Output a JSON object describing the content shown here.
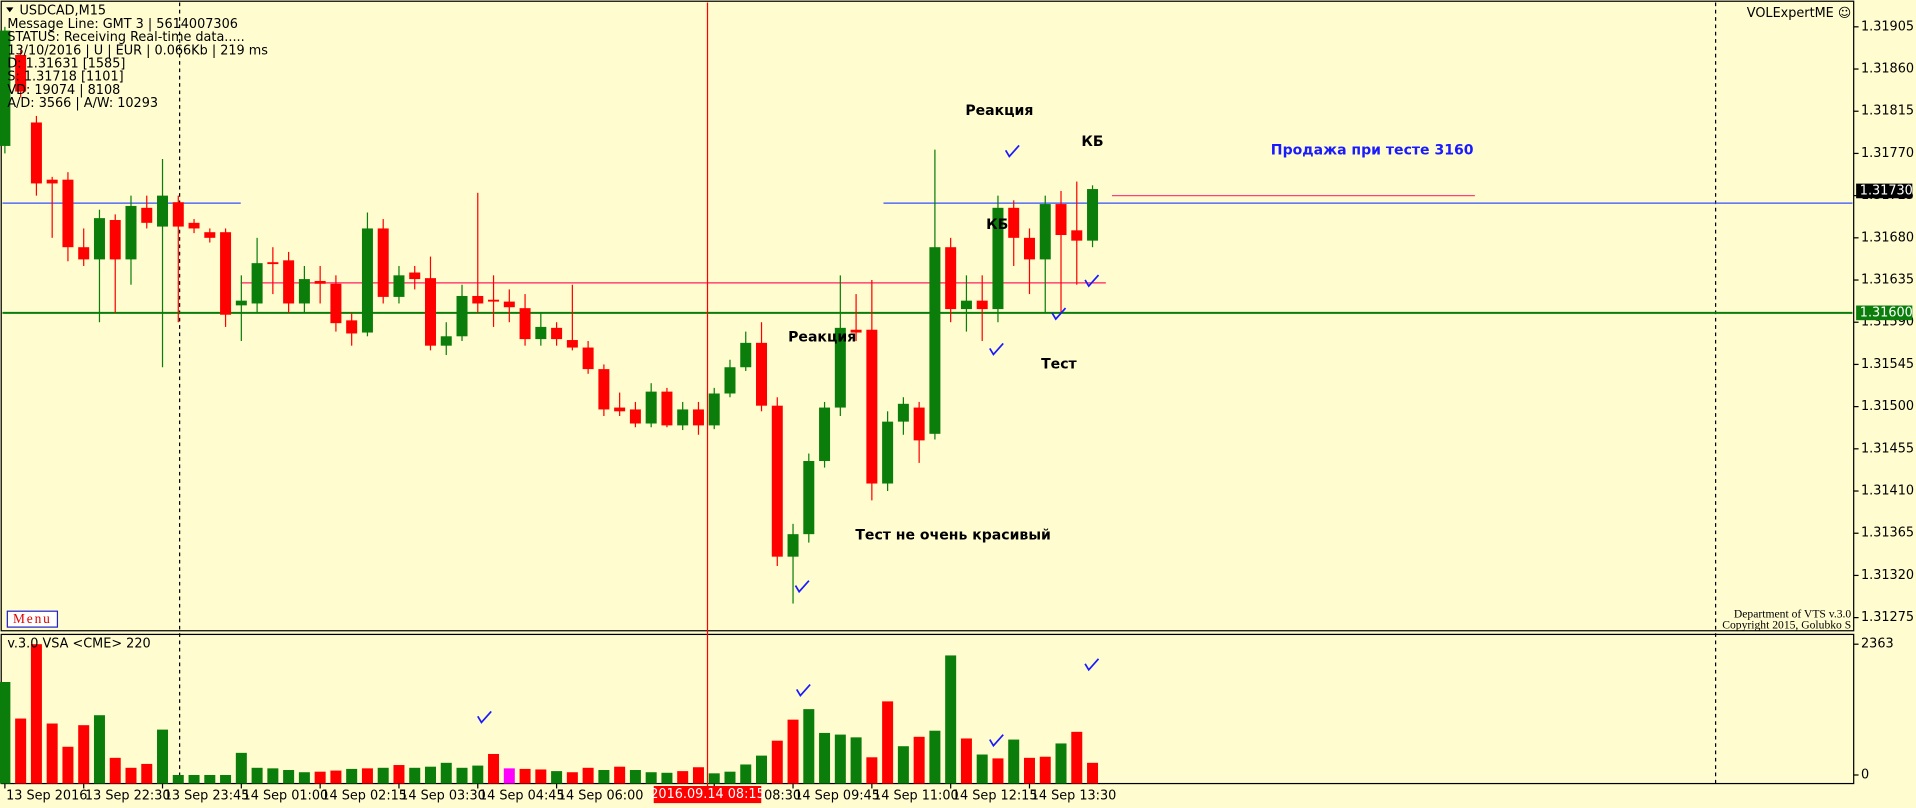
{
  "chart_data": [
    {
      "type": "candlestick",
      "title": "USDCAD,M15",
      "info_lines": [
        "Message Line: GMT 3 | 5614007306",
        "STATUS:  Receiving Real-time data.....",
        "13/10/2016 | U | EUR | 0.066Kb | 219 ms",
        "D: 1.31631  [1585]",
        "S: 1.31718  [1101]",
        "VD: 19074 | 8108",
        "A/D: 3566 | A/W: 10293"
      ],
      "indicator_name": "VOLExpertME ☺",
      "menu_label": "Menu",
      "footer_lines": [
        "Department of VTS  v.3.0",
        "Copyright 2015, Golubko S"
      ],
      "crosshair_label": "2016.09.14 08:15",
      "annotations": [
        "Реакция",
        "КБ",
        "Продажа при тесте 3160",
        "КБ",
        "Реакция",
        "Тест",
        "Тест не очень красивый"
      ],
      "categories": [
        "13 Sep 2016",
        null,
        null,
        null,
        null,
        "13 Sep 22:30",
        null,
        null,
        null,
        null,
        "13 Sep 23:45",
        null,
        null,
        null,
        null,
        "14 Sep 01:00",
        null,
        null,
        null,
        null,
        "14 Sep 02:15",
        null,
        null,
        null,
        null,
        "14 Sep 03:30",
        null,
        null,
        null,
        null,
        "14 Sep 04:45",
        null,
        null,
        null,
        null,
        "14 Sep 06:00",
        null,
        null,
        null,
        null,
        null,
        null,
        null,
        null,
        null,
        "14 Sep 08:30",
        null,
        null,
        null,
        null,
        "14 Sep 09:45",
        null,
        null,
        null,
        null,
        "14 Sep 11:00",
        null,
        null,
        null,
        null,
        "14 Sep 12:15",
        null,
        null,
        null,
        null,
        "14 Sep 13:30",
        null,
        null,
        null,
        null
      ],
      "open": [
        1.31778,
        1.31875,
        1.31803,
        1.31742,
        1.31742,
        1.3167,
        1.31657,
        1.31699,
        1.31657,
        1.31712,
        1.31692,
        1.31718,
        1.31696,
        1.31686,
        1.31686,
        1.31608,
        1.3161,
        1.31654,
        1.31656,
        1.3161,
        1.31634,
        1.31631,
        1.31592,
        1.31579,
        1.3169,
        1.31617,
        1.31643,
        1.31637,
        1.31565,
        1.31575,
        1.31618,
        1.31614,
        1.31612,
        1.31605,
        1.31572,
        1.31584,
        1.31571,
        1.31563,
        1.3154,
        1.31499,
        1.31497,
        1.31482,
        1.31516,
        1.3148,
        1.31497,
        1.3148,
        1.31514,
        1.31542,
        1.31568,
        1.31501,
        1.3134,
        1.31364,
        1.31442,
        1.31499,
        1.31582,
        1.31582,
        1.31418,
        1.31484,
        1.31499,
        1.31471,
        1.3167,
        1.31604,
        1.31613,
        1.31604,
        1.31712,
        1.3168,
        1.31657,
        1.31716,
        1.31688,
        1.31677
      ],
      "high": [
        1.31905,
        1.3188,
        1.3181,
        1.31745,
        1.3175,
        1.3169,
        1.3171,
        1.31705,
        1.31725,
        1.31725,
        1.31764,
        1.31725,
        1.317,
        1.3169,
        1.3169,
        1.3164,
        1.3168,
        1.3167,
        1.31665,
        1.3165,
        1.3165,
        1.3164,
        1.316,
        1.31707,
        1.317,
        1.3165,
        1.3165,
        1.3166,
        1.3159,
        1.3163,
        1.31728,
        1.3164,
        1.31625,
        1.3162,
        1.316,
        1.3159,
        1.3163,
        1.3157,
        1.31545,
        1.31515,
        1.31505,
        1.31525,
        1.3152,
        1.31505,
        1.31505,
        1.3152,
        1.3155,
        1.3158,
        1.3159,
        1.3151,
        1.31375,
        1.3145,
        1.31505,
        1.3164,
        1.3162,
        1.31635,
        1.31495,
        1.3151,
        1.31505,
        1.31774,
        1.3168,
        1.3164,
        1.3164,
        1.31725,
        1.3172,
        1.3169,
        1.31725,
        1.3173,
        1.3174,
        1.31736
      ],
      "low": [
        1.3177,
        1.3183,
        1.31725,
        1.3168,
        1.31655,
        1.3165,
        1.3159,
        1.316,
        1.3163,
        1.3169,
        1.31542,
        1.3159,
        1.31685,
        1.31675,
        1.31585,
        1.3157,
        1.316,
        1.3162,
        1.316,
        1.316,
        1.3161,
        1.3158,
        1.31565,
        1.31575,
        1.3161,
        1.3161,
        1.31625,
        1.3156,
        1.31555,
        1.3157,
        1.316,
        1.31585,
        1.3159,
        1.31565,
        1.31565,
        1.31565,
        1.3156,
        1.31535,
        1.3149,
        1.3149,
        1.31478,
        1.31478,
        1.31478,
        1.31475,
        1.3147,
        1.31476,
        1.3151,
        1.31538,
        1.31495,
        1.3133,
        1.3129,
        1.31355,
        1.31435,
        1.3149,
        1.3157,
        1.314,
        1.3141,
        1.3147,
        1.3144,
        1.31465,
        1.3159,
        1.3158,
        1.3157,
        1.3159,
        1.3165,
        1.3162,
        1.316,
        1.316,
        1.3163,
        1.3167
      ],
      "close": [
        1.31901,
        1.31836,
        1.31738,
        1.31738,
        1.3167,
        1.31657,
        1.31701,
        1.31657,
        1.31714,
        1.31696,
        1.31725,
        1.31692,
        1.3169,
        1.3168,
        1.31598,
        1.31613,
        1.31653,
        1.31652,
        1.3161,
        1.31636,
        1.31631,
        1.31589,
        1.31578,
        1.3169,
        1.31617,
        1.3164,
        1.31636,
        1.31565,
        1.31575,
        1.31618,
        1.3161,
        1.31612,
        1.31606,
        1.31572,
        1.31585,
        1.31572,
        1.31563,
        1.3154,
        1.31497,
        1.31495,
        1.31482,
        1.31516,
        1.3148,
        1.31497,
        1.3148,
        1.31514,
        1.31542,
        1.31568,
        1.31501,
        1.3134,
        1.31364,
        1.31442,
        1.31499,
        1.31584,
        1.31579,
        1.31418,
        1.31484,
        1.31503,
        1.31464,
        1.3167,
        1.31604,
        1.31613,
        1.31604,
        1.31712,
        1.3168,
        1.31657,
        1.31716,
        1.31683,
        1.31677,
        1.31732
      ],
      "up_color": "#0a7d0a",
      "down_color": "#ff0000",
      "ylim": [
        1.31261,
        1.31931
      ],
      "yticks": [
        1.31905,
        {
          "value": 1.3186,
          "label": "1.31860"
        },
        1.31815,
        {
          "value": 1.3177,
          "label": "1.31770"
        },
        1.31725,
        {
          "value": 1.3168,
          "label": "1.31680"
        },
        1.31635,
        {
          "value": 1.3159,
          "label": "1.31590"
        },
        1.31545,
        {
          "value": 1.315,
          "label": "1.31500"
        },
        1.31455,
        {
          "value": 1.3141,
          "label": "1.31410"
        },
        1.31365,
        {
          "value": 1.3132,
          "label": "1.31320"
        },
        1.31275
      ],
      "levels": [
        {
          "value": 1.31717,
          "color": "#3050ff"
        },
        {
          "value": 1.316,
          "color": "#0a7d0a"
        },
        {
          "value": 1.31632,
          "color": "#ff2060"
        },
        {
          "value": 1.31725,
          "color": "#ff4080"
        }
      ],
      "price_labels": [
        {
          "value": 1.3173,
          "label": "1.31730",
          "color": "#000000"
        },
        {
          "value": 1.316,
          "label": "1.31600",
          "color": "#0a7d0a"
        }
      ]
    },
    {
      "type": "bar",
      "title": "v.3.0 VSA <CME> 220",
      "values": [
        1680,
        1020,
        2363,
        930,
        510,
        900,
        1080,
        310,
        130,
        200,
        820,
        0,
        0,
        0,
        0,
        400,
        130,
        120,
        90,
        50,
        60,
        80,
        110,
        120,
        130,
        180,
        130,
        150,
        220,
        130,
        170,
        380,
        120,
        110,
        100,
        70,
        50,
        130,
        90,
        150,
        90,
        50,
        40,
        70,
        140,
        30,
        60,
        190,
        350,
        620,
        1000,
        1190,
        760,
        730,
        680,
        320,
        1330,
        520,
        690,
        800,
        2160,
        660,
        370,
        300,
        640,
        310,
        330,
        570,
        780,
        220
      ],
      "colors": [
        "#0a7d0a",
        "#ff0000",
        "#ff0000",
        "#ff0000",
        "#ff0000",
        "#ff0000",
        "#0a7d0a",
        "#ff0000",
        "#ff0000",
        "#ff0000",
        "#0a7d0a",
        "#0a7d0a",
        "#0a7d0a",
        "#0a7d0a",
        "#0a7d0a",
        "#0a7d0a",
        "#0a7d0a",
        "#0a7d0a",
        "#0a7d0a",
        "#0a7d0a",
        "#ff0000",
        "#ff0000",
        "#0a7d0a",
        "#ff0000",
        "#0a7d0a",
        "#ff0000",
        "#0a7d0a",
        "#0a7d0a",
        "#0a7d0a",
        "#0a7d0a",
        "#0a7d0a",
        "#ff0000",
        "#ff00ff",
        "#ff0000",
        "#ff0000",
        "#0a7d0a",
        "#ff0000",
        "#ff0000",
        "#0a7d0a",
        "#ff0000",
        "#0a7d0a",
        "#0a7d0a",
        "#0a7d0a",
        "#ff0000",
        "#ff0000",
        "#0a7d0a",
        "#0a7d0a",
        "#0a7d0a",
        "#0a7d0a",
        "#ff0000",
        "#ff0000",
        "#0a7d0a",
        "#0a7d0a",
        "#0a7d0a",
        "#0a7d0a",
        "#ff0000",
        "#ff0000",
        "#0a7d0a",
        "#ff0000",
        "#0a7d0a",
        "#0a7d0a",
        "#ff0000",
        "#0a7d0a",
        "#ff0000",
        "#0a7d0a",
        "#ff0000",
        "#ff0000",
        "#0a7d0a",
        "#ff0000",
        "#ff0000"
      ],
      "ylim": [
        0,
        2363
      ],
      "yticks": [
        0,
        2363
      ]
    }
  ]
}
